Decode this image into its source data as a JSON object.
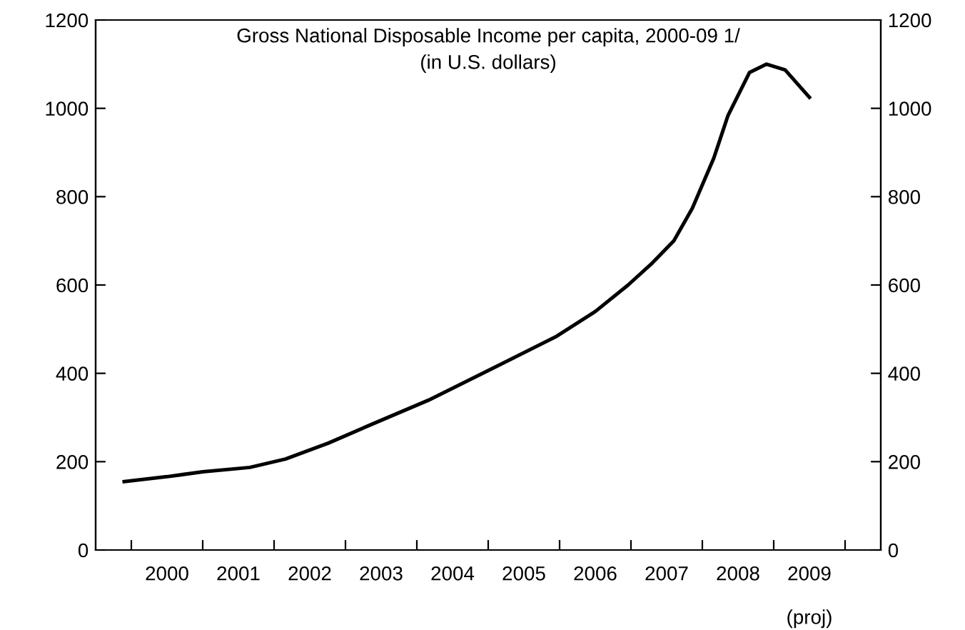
{
  "chart_data": {
    "type": "line",
    "title": "Gross National Disposable Income per capita, 2000-09 1/",
    "subtitle": "(in U.S. dollars)",
    "annotations": [
      "(proj)"
    ],
    "x": [
      1999.9,
      2000.5,
      2001.0,
      2001.66,
      2002.16,
      2002.76,
      2003.36,
      2004.16,
      2004.96,
      2005.96,
      2006.5,
      2006.96,
      2007.3,
      2007.6,
      2007.86,
      2008.16,
      2008.36,
      2008.66,
      2008.9,
      2009.16,
      2009.5
    ],
    "series": [
      {
        "color": "#000000",
        "values": [
          155,
          166,
          177,
          187,
          206,
          242,
          284,
          339,
          403,
          484,
          540,
          600,
          650,
          700,
          774,
          887,
          984,
          1081,
          1100,
          1087,
          1025
        ]
      }
    ],
    "xlim": [
      1999.5,
      2010.5
    ],
    "xticks": [
      {
        "value": 2000,
        "label": null
      },
      {
        "value": 2000.5,
        "label": "2000"
      },
      {
        "value": 2001,
        "label": null
      },
      {
        "value": 2001.5,
        "label": "2001"
      },
      {
        "value": 2002,
        "label": null
      },
      {
        "value": 2002.5,
        "label": "2002"
      },
      {
        "value": 2003,
        "label": null
      },
      {
        "value": 2003.5,
        "label": "2003"
      },
      {
        "value": 2004,
        "label": null
      },
      {
        "value": 2004.5,
        "label": "2004"
      },
      {
        "value": 2005,
        "label": null
      },
      {
        "value": 2005.5,
        "label": "2005"
      },
      {
        "value": 2006,
        "label": null
      },
      {
        "value": 2006.5,
        "label": "2006"
      },
      {
        "value": 2007,
        "label": null
      },
      {
        "value": 2007.5,
        "label": "2007"
      },
      {
        "value": 2008,
        "label": null
      },
      {
        "value": 2008.5,
        "label": "2008"
      },
      {
        "value": 2009,
        "label": null
      },
      {
        "value": 2009.5,
        "label": "2009"
      },
      {
        "value": 2010,
        "label": null
      }
    ],
    "ylim": [
      0,
      1200
    ],
    "yticks": [
      0,
      200,
      400,
      600,
      800,
      1000,
      1200
    ],
    "y2lim": [
      0,
      1200
    ],
    "y2ticks": [
      0,
      200,
      400,
      600,
      800,
      1000,
      1200
    ],
    "grid": false,
    "legend": false,
    "marker": "none",
    "line_style": "solid"
  }
}
